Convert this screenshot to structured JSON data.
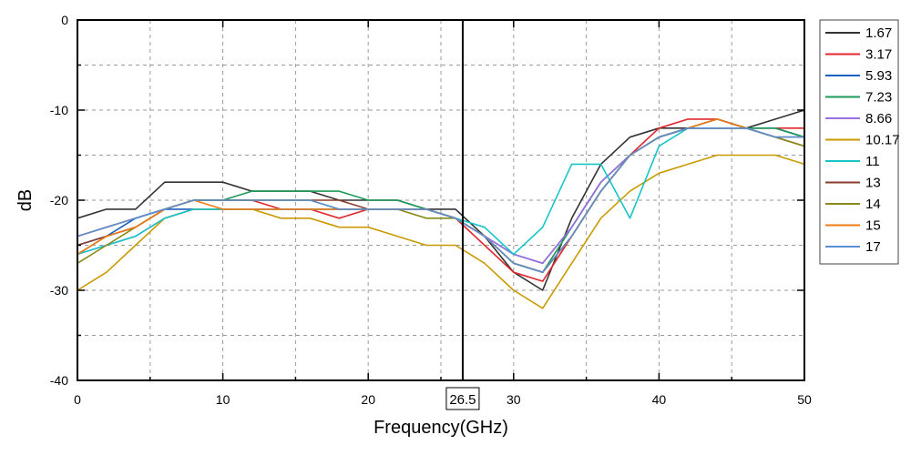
{
  "chart_data": {
    "type": "line",
    "title": "",
    "xlabel": "Frequency(GHz)",
    "ylabel": "dB",
    "xlim": [
      0,
      50
    ],
    "ylim": [
      -40,
      0
    ],
    "x_ticks": [
      0,
      10,
      20,
      30,
      40,
      50
    ],
    "y_ticks": [
      0,
      -10,
      -20,
      -30,
      -40
    ],
    "x_minor_ticks": [
      5,
      15,
      25,
      35,
      45
    ],
    "y_minor_ticks": [
      -5,
      -15,
      -25,
      -35
    ],
    "grid": true,
    "legend_position": "right",
    "marker": {
      "x": 26.5,
      "label": "26.5"
    },
    "series": [
      {
        "name": "1.67",
        "color": "#333333",
        "x": [
          0,
          2,
          4,
          6,
          8,
          10,
          12,
          14,
          16,
          18,
          20,
          22,
          24,
          26,
          28,
          30,
          32,
          34,
          36,
          38,
          40,
          42,
          44,
          46,
          48,
          50
        ],
        "y": [
          -22,
          -21,
          -21,
          -18,
          -18,
          -18,
          -19,
          -19,
          -19,
          -20,
          -20,
          -20,
          -21,
          -21,
          -24,
          -28,
          -30,
          -22,
          -16,
          -13,
          -12,
          -12,
          -11,
          -12,
          -11,
          -10
        ]
      },
      {
        "name": "3.17",
        "color": "#e0272d",
        "x": [
          0,
          2,
          4,
          6,
          8,
          10,
          12,
          14,
          16,
          18,
          20,
          22,
          24,
          26,
          28,
          30,
          32,
          34,
          36,
          38,
          40,
          42,
          44,
          46,
          48,
          50
        ],
        "y": [
          -24,
          -23,
          -22,
          -21,
          -20,
          -20,
          -20,
          -21,
          -21,
          -22,
          -21,
          -21,
          -21,
          -22,
          -25,
          -28,
          -29,
          -24,
          -19,
          -15,
          -12,
          -11,
          -11,
          -12,
          -12,
          -12
        ]
      },
      {
        "name": "5.93",
        "color": "#1a5fc1",
        "x": [
          0,
          2,
          4,
          6,
          8,
          10,
          12,
          14,
          16,
          18,
          20,
          22,
          24,
          26,
          28,
          30,
          32,
          34,
          36,
          38,
          40,
          42,
          44,
          46,
          48,
          50
        ],
        "y": [
          -25,
          -24,
          -22,
          -21,
          -21,
          -21,
          -21,
          -21,
          -21,
          -21,
          -21,
          -21,
          -21,
          -22,
          -24,
          -26,
          -27,
          -23,
          -18,
          -15,
          -13,
          -12,
          -12,
          -12,
          -12,
          -13
        ]
      },
      {
        "name": "7.23",
        "color": "#1e9a5a",
        "x": [
          0,
          2,
          4,
          6,
          8,
          10,
          12,
          14,
          16,
          18,
          20,
          22,
          24,
          26,
          28,
          30,
          32,
          34,
          36,
          38,
          40,
          42,
          44,
          46,
          48,
          50
        ],
        "y": [
          -26,
          -24,
          -23,
          -21,
          -20,
          -20,
          -19,
          -19,
          -19,
          -19,
          -20,
          -20,
          -21,
          -22,
          -24,
          -27,
          -28,
          -23,
          -18,
          -15,
          -13,
          -12,
          -11,
          -12,
          -12,
          -13
        ]
      },
      {
        "name": "8.66",
        "color": "#9b6fe0",
        "x": [
          0,
          2,
          4,
          6,
          8,
          10,
          12,
          14,
          16,
          18,
          20,
          22,
          24,
          26,
          28,
          30,
          32,
          34,
          36,
          38,
          40,
          42,
          44,
          46,
          48,
          50
        ],
        "y": [
          -26,
          -25,
          -24,
          -22,
          -21,
          -21,
          -21,
          -21,
          -21,
          -21,
          -21,
          -21,
          -21,
          -22,
          -24,
          -26,
          -27,
          -23,
          -18,
          -15,
          -13,
          -12,
          -12,
          -12,
          -13,
          -13
        ]
      },
      {
        "name": "10.17",
        "color": "#c99a00",
        "x": [
          0,
          2,
          4,
          6,
          8,
          10,
          12,
          14,
          16,
          18,
          20,
          22,
          24,
          26,
          28,
          30,
          32,
          34,
          36,
          38,
          40,
          42,
          44,
          46,
          48,
          50
        ],
        "y": [
          -30,
          -28,
          -25,
          -22,
          -21,
          -21,
          -21,
          -22,
          -22,
          -23,
          -23,
          -24,
          -25,
          -25,
          -27,
          -30,
          -32,
          -27,
          -22,
          -19,
          -17,
          -16,
          -15,
          -15,
          -15,
          -16
        ]
      },
      {
        "name": "11",
        "color": "#17c5c9",
        "x": [
          0,
          2,
          4,
          6,
          8,
          10,
          12,
          14,
          16,
          18,
          20,
          22,
          24,
          26,
          28,
          30,
          32,
          34,
          36,
          38,
          40,
          42,
          44,
          46,
          48,
          50
        ],
        "y": [
          -26,
          -25,
          -24,
          -22,
          -21,
          -21,
          -21,
          -21,
          -21,
          -21,
          -21,
          -21,
          -21,
          -22,
          -23,
          -26,
          -23,
          -16,
          -16,
          -22,
          -14,
          -12,
          -12,
          -12,
          -13,
          -13
        ]
      },
      {
        "name": "13",
        "color": "#8b3a2e",
        "x": [
          0,
          2,
          4,
          6,
          8,
          10,
          12,
          14,
          16,
          18,
          20,
          22,
          24,
          26,
          28,
          30,
          32,
          34,
          36,
          38,
          40,
          42,
          44,
          46,
          48,
          50
        ],
        "y": [
          -25,
          -24,
          -23,
          -21,
          -20,
          -20,
          -20,
          -20,
          -20,
          -20,
          -21,
          -21,
          -21,
          -22,
          -24,
          -27,
          -28,
          -24,
          -19,
          -15,
          -13,
          -12,
          -12,
          -12,
          -13,
          -14
        ]
      },
      {
        "name": "14",
        "color": "#8a8a1a",
        "x": [
          0,
          2,
          4,
          6,
          8,
          10,
          12,
          14,
          16,
          18,
          20,
          22,
          24,
          26,
          28,
          30,
          32,
          34,
          36,
          38,
          40,
          42,
          44,
          46,
          48,
          50
        ],
        "y": [
          -27,
          -25,
          -23,
          -21,
          -20,
          -20,
          -20,
          -20,
          -20,
          -21,
          -21,
          -21,
          -22,
          -22,
          -24,
          -27,
          -28,
          -24,
          -19,
          -15,
          -13,
          -12,
          -12,
          -12,
          -13,
          -14
        ]
      },
      {
        "name": "15",
        "color": "#f07a15",
        "x": [
          0,
          2,
          4,
          6,
          8,
          10,
          12,
          14,
          16,
          18,
          20,
          22,
          24,
          26,
          28,
          30,
          32,
          34,
          36,
          38,
          40,
          42,
          44,
          46,
          48,
          50
        ],
        "y": [
          -26,
          -24,
          -23,
          -21,
          -20,
          -21,
          -21,
          -21,
          -21,
          -21,
          -21,
          -21,
          -21,
          -22,
          -24,
          -27,
          -28,
          -24,
          -19,
          -15,
          -13,
          -12,
          -11,
          -12,
          -13,
          -13
        ]
      },
      {
        "name": "17",
        "color": "#5a8fd0",
        "x": [
          0,
          2,
          4,
          6,
          8,
          10,
          12,
          14,
          16,
          18,
          20,
          22,
          24,
          26,
          28,
          30,
          32,
          34,
          36,
          38,
          40,
          42,
          44,
          46,
          48,
          50
        ],
        "y": [
          -24,
          -23,
          -22,
          -21,
          -20,
          -20,
          -20,
          -20,
          -20,
          -21,
          -21,
          -21,
          -21,
          -22,
          -24,
          -27,
          -28,
          -24,
          -19,
          -15,
          -13,
          -12,
          -12,
          -12,
          -13,
          -13
        ]
      }
    ]
  }
}
